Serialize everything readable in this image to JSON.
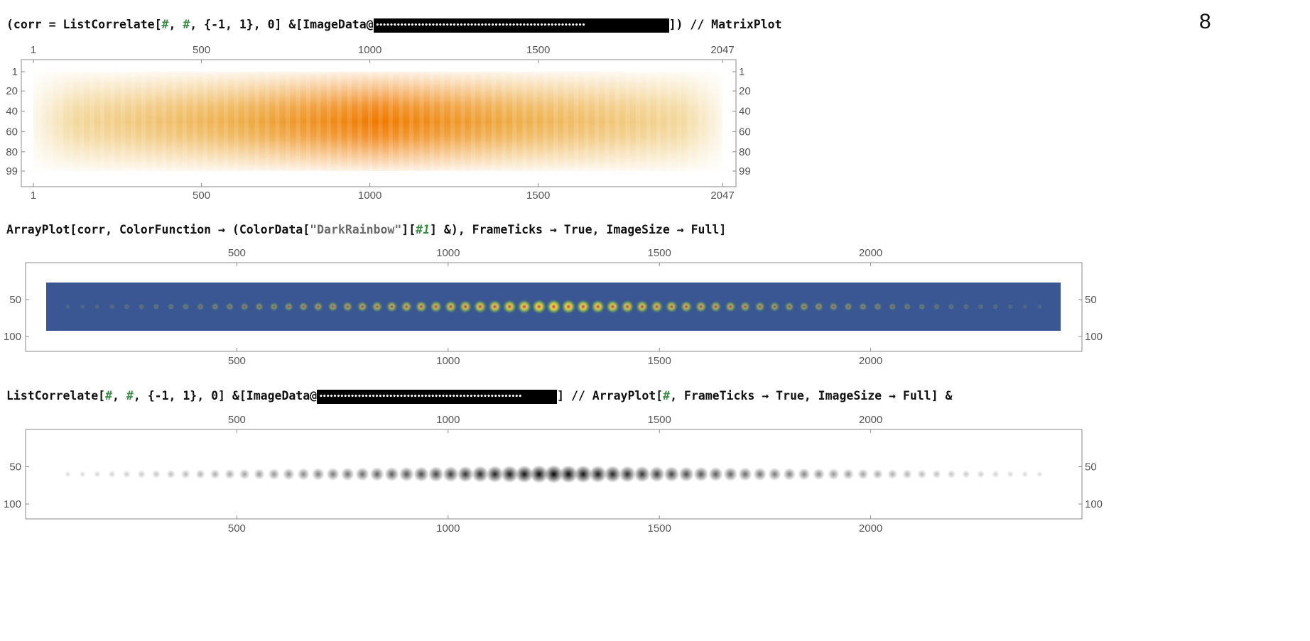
{
  "page_number": "8",
  "cells": [
    {
      "id": "matrixplot",
      "code": {
        "pre": "(corr = ListCorrelate[",
        "sym1": "#",
        "sep1": ", ",
        "sym2": "#",
        "mid": ", {-1, 1}, 0] &[ImageData@",
        "blob": "••••••••••••••••••••••••••••••••••••••••••••••••••••••••••••",
        "post": "]) // MatrixPlot"
      }
    },
    {
      "id": "arrayplot-darkrainbow",
      "code": {
        "pre": "ArrayPlot[corr, ColorFunction → (ColorData[",
        "str": "\"DarkRainbow\"",
        "mid": "][",
        "sym": "#1",
        "post": "] &), FrameTicks → True, ImageSize → Full]"
      }
    },
    {
      "id": "arrayplot-gray",
      "code": {
        "pre": "ListCorrelate[",
        "sym1": "#",
        "sep1": ", ",
        "sym2": "#",
        "mid": ", {-1, 1}, 0] &[ImageData@",
        "blob": "••••••••••••••••••••••••••••••••••••••••••••••••••••••••••",
        "post": "] // ArrayPlot[",
        "sym3": "#",
        "post2": ", FrameTicks → True, ImageSize → Full] &"
      }
    }
  ],
  "chart_data": [
    {
      "type": "heatmap",
      "title": "",
      "colormap": "MatrixPlot default (white → orange)",
      "x_range": [
        1,
        2047
      ],
      "y_range": [
        1,
        99
      ],
      "x_ticks": [
        "1",
        "500",
        "1000",
        "1500",
        "2047"
      ],
      "y_ticks": [
        "1",
        "20",
        "40",
        "60",
        "80",
        "99"
      ],
      "colors": {
        "low": "#fbf6e6",
        "mid": "#efbd55",
        "high": "#f07a00"
      }
    },
    {
      "type": "heatmap",
      "title": "",
      "colormap": "DarkRainbow",
      "x_range": [
        0,
        2500
      ],
      "y_range": [
        0,
        120
      ],
      "x_ticks": [
        "500",
        "1000",
        "1500",
        "2000"
      ],
      "y_ticks": [
        "50",
        "100"
      ],
      "spot_count": 67,
      "peak_x": 1250,
      "colors": {
        "background": "#3b5793",
        "low": "#5a8f5f",
        "mid": "#e6d651",
        "high": "#cf3a3a"
      }
    },
    {
      "type": "heatmap",
      "title": "",
      "colormap": "grayscale",
      "x_range": [
        0,
        2500
      ],
      "y_range": [
        0,
        120
      ],
      "x_ticks": [
        "500",
        "1000",
        "1500",
        "2000"
      ],
      "y_ticks": [
        "50",
        "100"
      ],
      "spot_count": 67,
      "peak_x": 1250,
      "colors": {
        "background": "#ffffff",
        "high": "#000000"
      }
    }
  ]
}
